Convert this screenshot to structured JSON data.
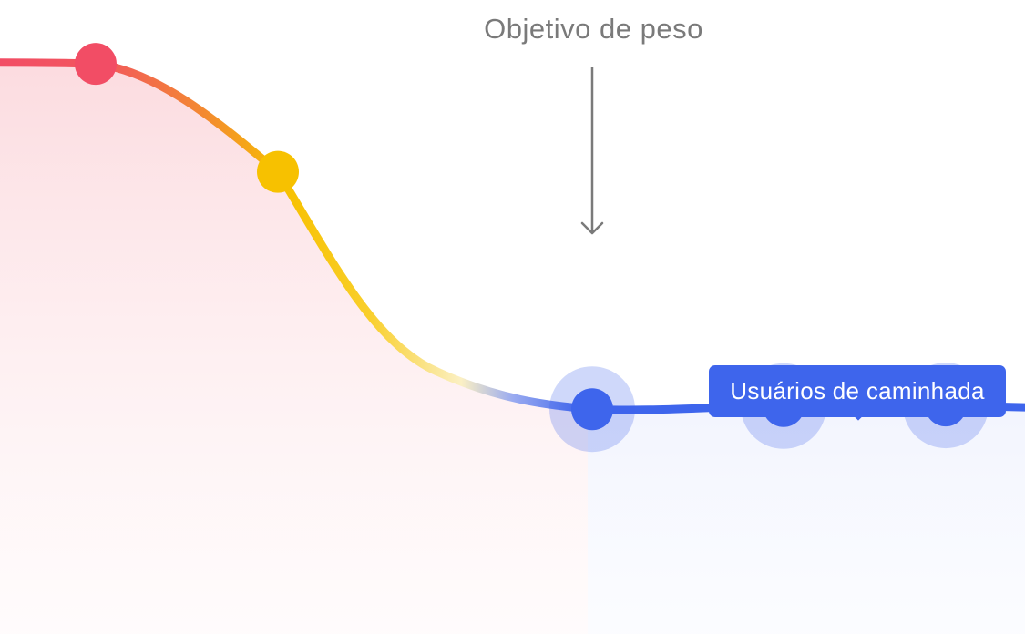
{
  "chart_data": {
    "type": "line",
    "title": "",
    "xlabel": "",
    "ylabel": "",
    "grid": false,
    "annotations": {
      "goal_label": "Objetivo de peso",
      "user_group_label": "Usuários de caminhada"
    },
    "series": [
      {
        "points": [
          {
            "x": 0.0,
            "y": 0.915
          },
          {
            "x": 1.0,
            "y": 0.913
          },
          {
            "x": 2.0,
            "y": 0.74
          },
          {
            "x": 3.0,
            "y": 0.42
          },
          {
            "x": 4.0,
            "y": 0.36
          },
          {
            "x": 5.0,
            "y": 0.365
          },
          {
            "x": 6.0,
            "y": 0.366
          }
        ],
        "highlighted_points": [
          1,
          2,
          4,
          5,
          6
        ]
      }
    ],
    "goal_level": 0.365,
    "colors": {
      "high": "#f24d65",
      "mid": "#f7c100",
      "low": "#3e65ec",
      "goal_line": "#b9aeb0",
      "arrow": "#7a7a7a",
      "area_high": "#fbd7db",
      "area_low": "#d9dffc"
    }
  }
}
